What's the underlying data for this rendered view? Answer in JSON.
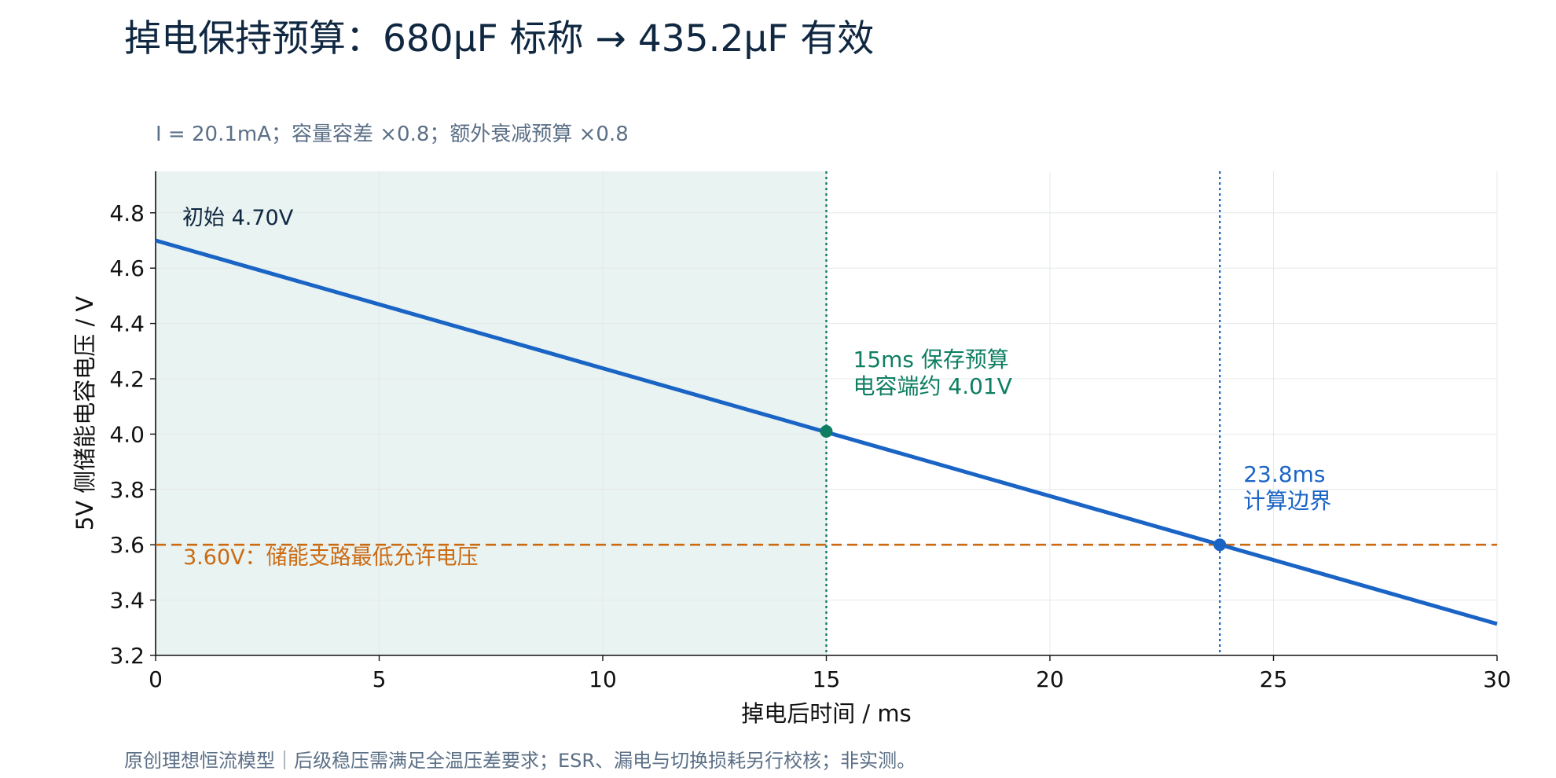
{
  "title": "掉电保持预算：680μF 标称 → 435.2μF 有效",
  "subtitle": "I = 20.1mA；容量容差 ×0.8；额外衰减预算 ×0.8",
  "footer": "原创理想恒流模型｜后级稳压需满足全温压差要求；ESR、漏电与切换损耗另行校核；非实测。",
  "colors": {
    "line": "#1a64c5",
    "hold": "#0e7e62",
    "threshold": "#cc6a12",
    "shade": "#e9f3f1",
    "text": "#0f2740",
    "muted": "#5b6f86"
  },
  "chart_data": {
    "type": "line",
    "xlabel": "掉电后时间 / ms",
    "ylabel": "5V 侧储能电容电压 / V",
    "xlim": [
      0,
      30
    ],
    "ylim": [
      3.2,
      4.95
    ],
    "grid": true,
    "x_ticks": [
      "0",
      "5",
      "10",
      "15",
      "20",
      "25",
      "30"
    ],
    "y_ticks": [
      "3.2",
      "3.4",
      "3.6",
      "3.8",
      "4.0",
      "4.2",
      "4.4",
      "4.6",
      "4.8"
    ],
    "series": [
      {
        "x": [
          0,
          30
        ],
        "y": [
          4.7,
          3.314
        ]
      }
    ],
    "shaded_region": {
      "x": [
        0,
        15
      ]
    },
    "threshold": {
      "y": 3.6,
      "label": "3.60V：储能支路最低允许电压"
    },
    "markers": [
      {
        "x": 15,
        "y": 4.01,
        "label": [
          "15ms 保存预算",
          "电容端约 4.01V"
        ]
      },
      {
        "x": 23.8,
        "y": 3.6,
        "label": [
          "23.8ms",
          "计算边界"
        ]
      }
    ],
    "annotations": [
      {
        "x": 0,
        "y": 4.7,
        "text": "初始 4.70V"
      }
    ]
  }
}
